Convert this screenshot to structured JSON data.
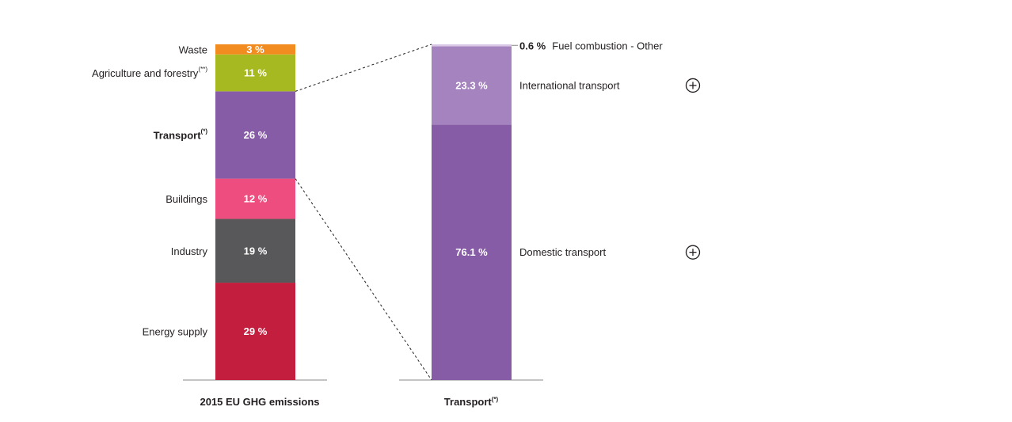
{
  "chart_data": [
    {
      "type": "stacked-bar",
      "xlabel": "2015 EU GHG emissions",
      "unit": "%",
      "segments": [
        {
          "name": "Energy supply",
          "value": 29,
          "label": "29 %",
          "color": "#c41e3f",
          "bold": false,
          "sup": ""
        },
        {
          "name": "Industry",
          "value": 19,
          "label": "19 %",
          "color": "#58585a",
          "bold": false,
          "sup": ""
        },
        {
          "name": "Buildings",
          "value": 12,
          "label": "12 %",
          "color": "#ee4d7f",
          "bold": false,
          "sup": ""
        },
        {
          "name": "Transport",
          "value": 26,
          "label": "26 %",
          "color": "#875ca6",
          "bold": true,
          "sup": "(*)"
        },
        {
          "name": "Agriculture and forestry",
          "value": 11,
          "label": "11 %",
          "color": "#a7b921",
          "bold": false,
          "sup": "(**)"
        },
        {
          "name": "Waste",
          "value": 3,
          "label": "3 %",
          "color": "#f28c20",
          "bold": false,
          "sup": ""
        }
      ]
    },
    {
      "type": "stacked-bar",
      "xlabel": "Transport",
      "xlabel_sup": "(*)",
      "breakdown_of": "Transport",
      "segments": [
        {
          "name": "Domestic transport",
          "value": 76.1,
          "label": "76.1 %",
          "color": "#875ca6",
          "expandable": true
        },
        {
          "name": "International transport",
          "value": 23.3,
          "label": "23.3 %",
          "color": "#a583be",
          "expandable": true
        },
        {
          "name": "Fuel combustion - Other",
          "value": 0.6,
          "label": "0.6 %",
          "color": "#d9c9e6",
          "expandable": false
        }
      ]
    }
  ],
  "icons": {
    "expand": "plus-circle-icon"
  }
}
